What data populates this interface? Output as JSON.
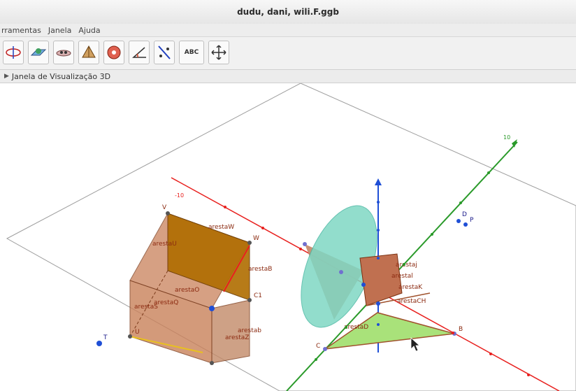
{
  "window": {
    "title": "dudu, dani, wili.F.ggb"
  },
  "menu": {
    "items": [
      "rramentas",
      "Janela",
      "Ajuda"
    ]
  },
  "toolbar": {
    "tools": [
      {
        "name": "rotate-view-tool-icon"
      },
      {
        "name": "plane-tool-icon"
      },
      {
        "name": "intersect-tool-icon"
      },
      {
        "name": "pyramid-tool-icon"
      },
      {
        "name": "sphere-tool-icon"
      },
      {
        "name": "angle-tool-icon"
      },
      {
        "name": "reflect-tool-icon"
      },
      {
        "name": "text-tool-icon",
        "label": "ABC"
      },
      {
        "name": "move-view-tool-icon"
      }
    ]
  },
  "view": {
    "title": "Janela de Visualização 3D",
    "colors": {
      "x_axis": "#e8201e",
      "y_axis": "#2a9a2a",
      "z_axis": "#1f4fd6",
      "cube": "#c9815a",
      "cube_top": "#b06d00",
      "cone": "#7fd8c4",
      "triangle": "#a9e27a"
    },
    "labels": {
      "V": "V",
      "W": "W",
      "C1": "C1",
      "T": "T",
      "U": "U",
      "cube_face_1": "arestaW",
      "cube_face_2": "arestaU",
      "cube_face_3": "arestaB",
      "cube_face_4": "arestaO",
      "cube_face_5": "arestaQ",
      "cube_face_6": "arestaS",
      "cube_face_7": "arestab",
      "cube_face_8": "arestaZ",
      "cone_face": "arestaH",
      "pyramid_1": "arestaj",
      "pyramid_2": "arestal",
      "pyramid_3": "arestaK",
      "pyramid_4": "arestaCH",
      "triangle": "arestaD",
      "D": "D",
      "P": "P",
      "C": "C",
      "B": "B",
      "y_end": "10",
      "x_end": "-10"
    }
  }
}
